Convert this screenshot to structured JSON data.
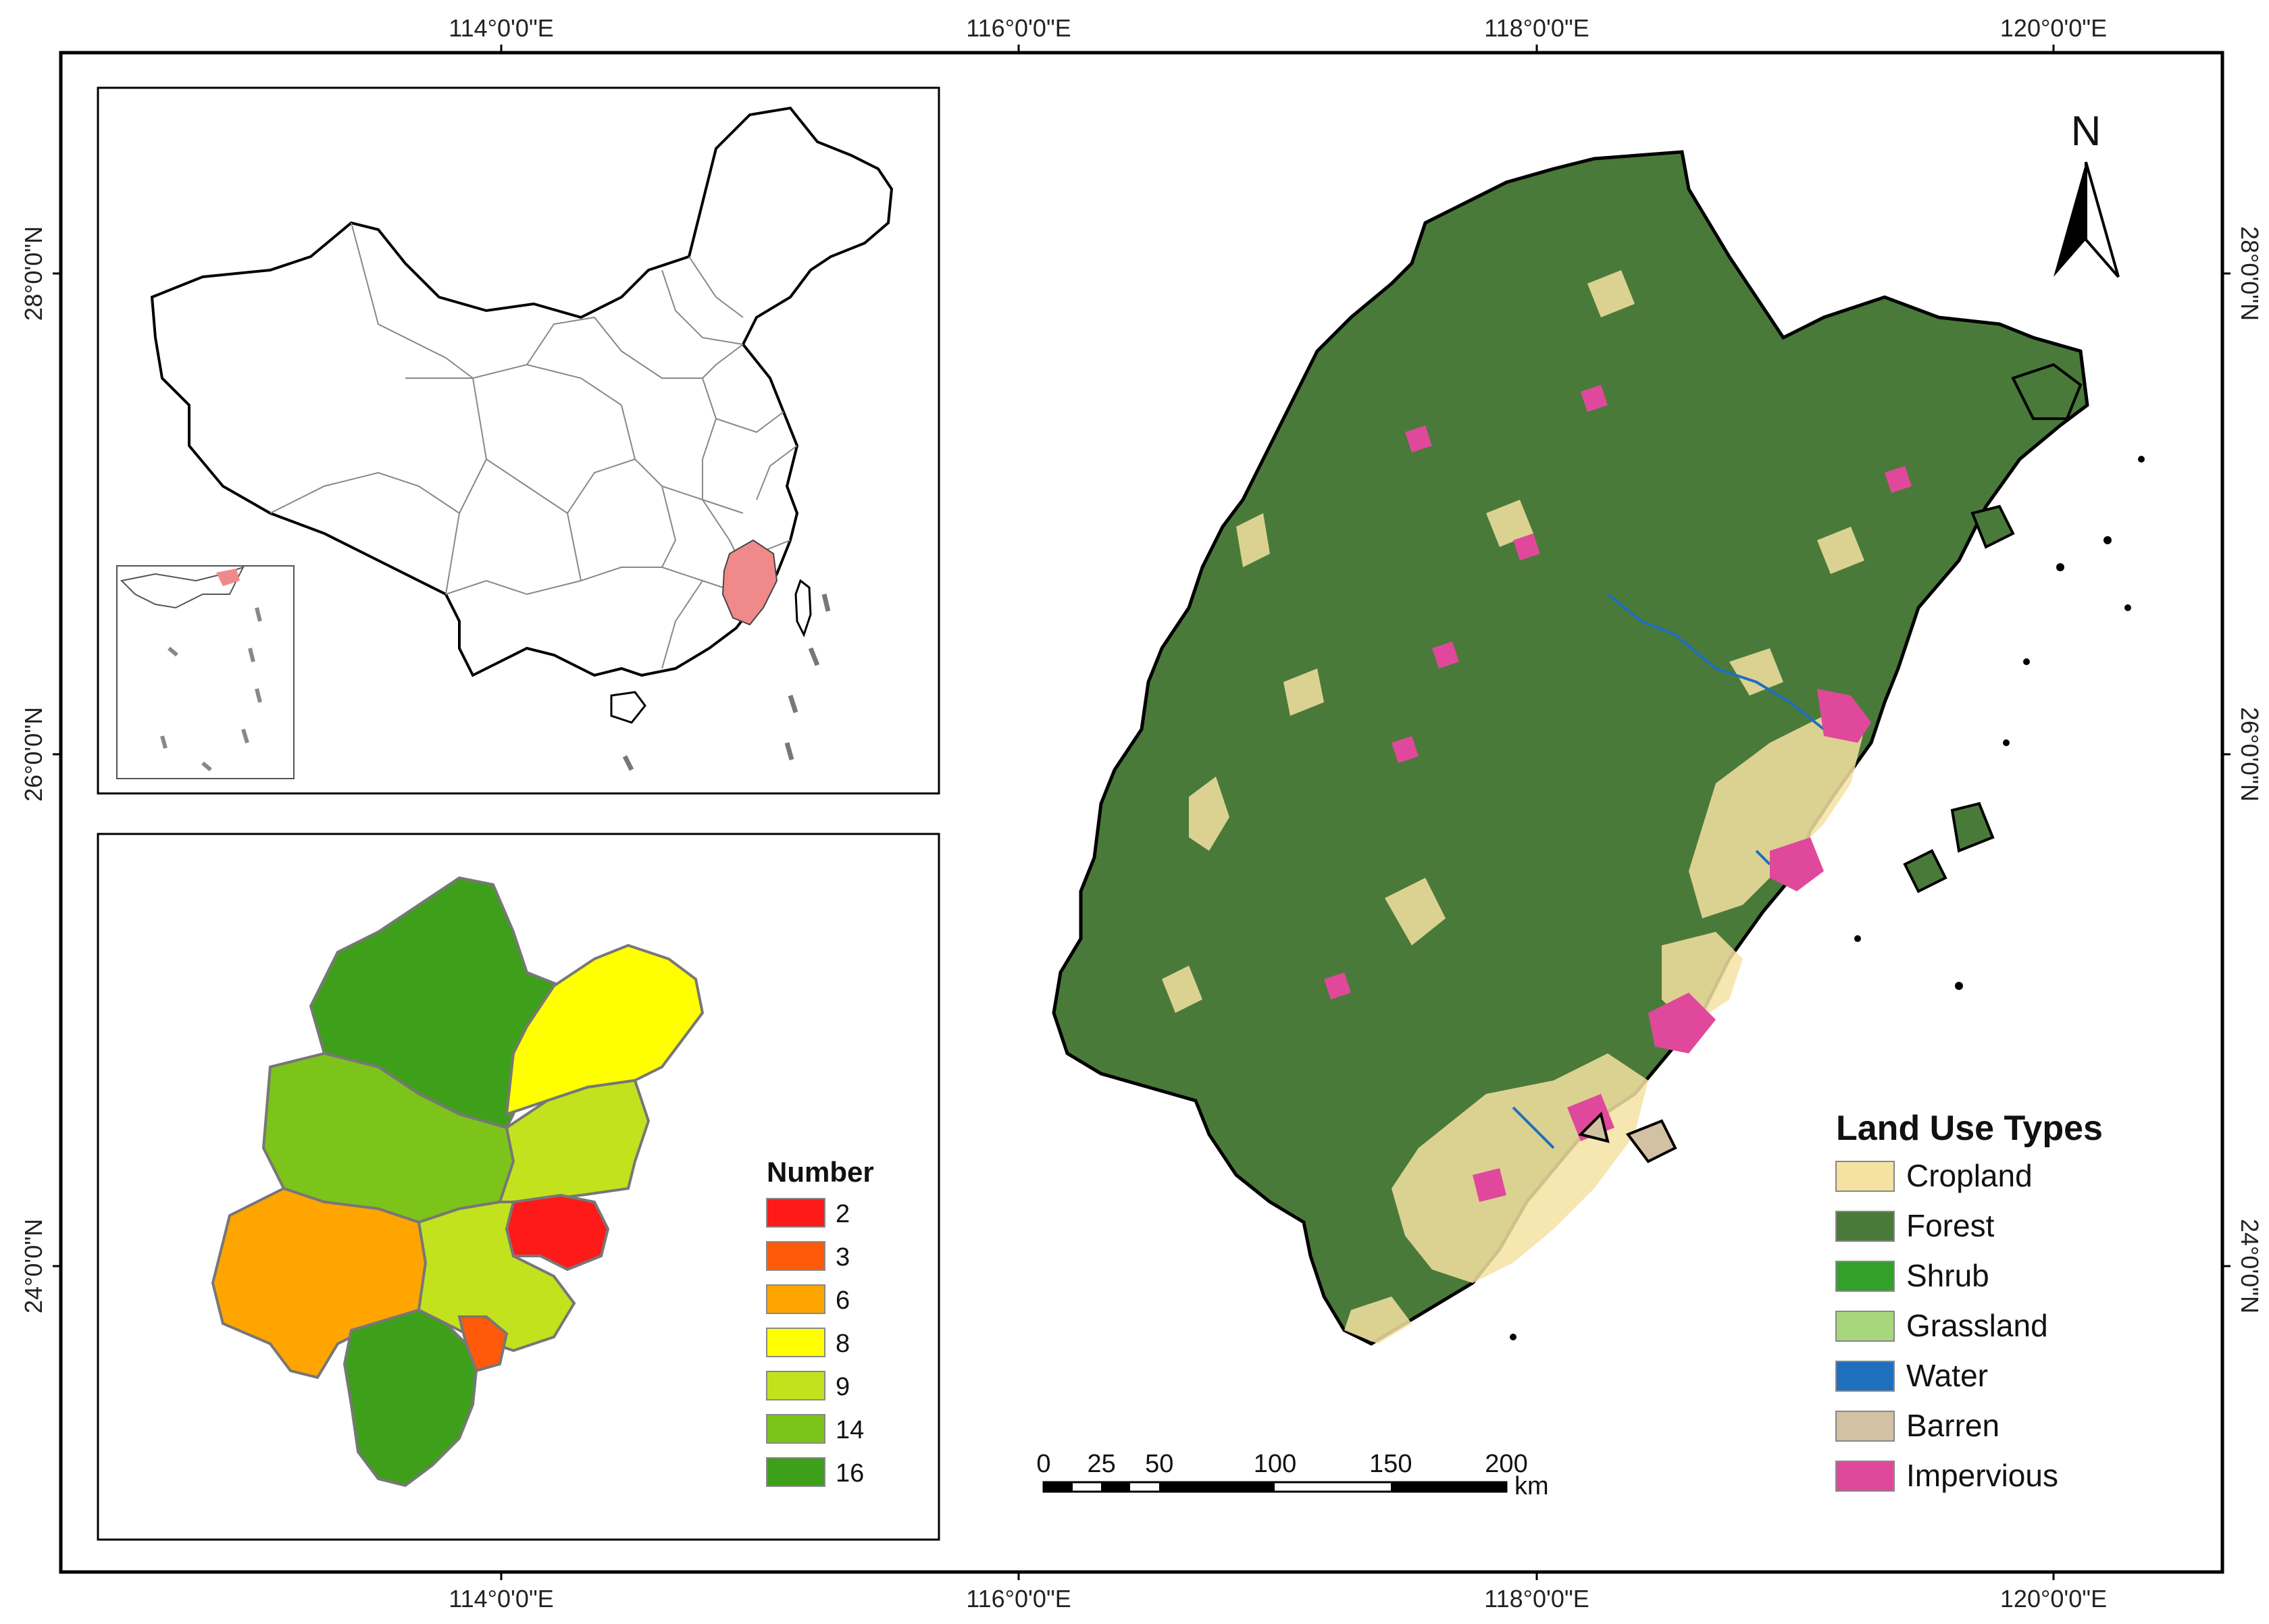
{
  "graticule": {
    "top_lon": [
      "114°0'0\"E",
      "116°0'0\"E",
      "118°0'0\"E",
      "120°0'0\"E"
    ],
    "bottom_lon": [
      "114°0'0\"E",
      "116°0'0\"E",
      "118°0'0\"E",
      "120°0'0\"E"
    ],
    "left_lat": [
      "28°0'0\"N",
      "26°0'0\"N",
      "24°0'0\"N"
    ],
    "right_lat": [
      "28°0'0\"N",
      "26°0'0\"N",
      "24°0'0\"N"
    ]
  },
  "north_arrow": {
    "label": "N"
  },
  "scale_bar": {
    "ticks": [
      "0",
      "25",
      "50",
      "100",
      "150",
      "200"
    ],
    "unit": "km"
  },
  "land_use_legend": {
    "title": "Land Use Types",
    "items": [
      {
        "label": "Cropland",
        "color": "#f5e2a2"
      },
      {
        "label": "Forest",
        "color": "#4a7a3a"
      },
      {
        "label": "Shrub",
        "color": "#33a02c"
      },
      {
        "label": "Grassland",
        "color": "#a6d77c"
      },
      {
        "label": "Water",
        "color": "#1f6fbf"
      },
      {
        "label": "Barren",
        "color": "#d2c2a3"
      },
      {
        "label": "Impervious",
        "color": "#e0499b"
      }
    ]
  },
  "number_legend": {
    "title": "Number",
    "items": [
      {
        "label": "2",
        "color": "#ff1a1a"
      },
      {
        "label": "3",
        "color": "#ff5a0a"
      },
      {
        "label": "6",
        "color": "#ffa500"
      },
      {
        "label": "8",
        "color": "#ffff00"
      },
      {
        "label": "9",
        "color": "#c3e21e"
      },
      {
        "label": "14",
        "color": "#7dc41a"
      },
      {
        "label": "16",
        "color": "#3ea01a"
      }
    ]
  },
  "china_inset": {
    "highlight_color": "#f08a8a"
  }
}
